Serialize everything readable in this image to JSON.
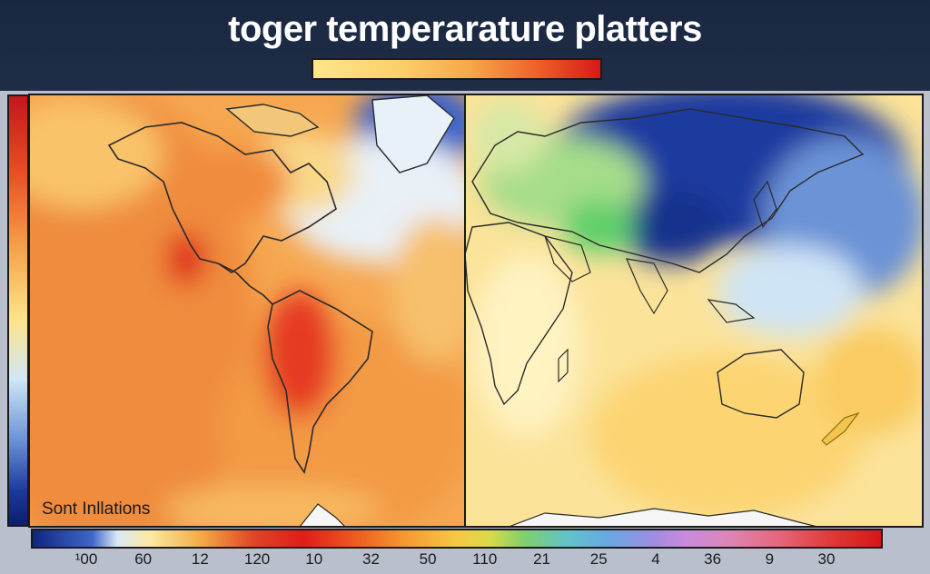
{
  "title": "toger temperarature platters",
  "panel_label": "Sont Inllations",
  "colors": {
    "warm_high": "#d61a17",
    "warm": "#f08a3c",
    "neutral": "#fde48a",
    "cool": "#cfe6f5",
    "cold": "#0c1e6e",
    "land_outline": "#2a2a2a"
  },
  "legend": {
    "top_scale": {
      "low_color": "#fde58a",
      "high_color": "#d61a17"
    },
    "left_scale": {
      "top_color": "#c4161c",
      "bottom_color": "#0c1e6e"
    },
    "bottom_scale_ticks": [
      "¹00",
      "60",
      "12",
      "120",
      "10",
      "32",
      "50",
      "110",
      "21",
      "25",
      "4",
      "36",
      "9",
      "30"
    ]
  },
  "panels": [
    {
      "id": "americas",
      "description_color": "warm"
    },
    {
      "id": "eurasia-africa-oceania",
      "description_color": "mixed"
    }
  ]
}
